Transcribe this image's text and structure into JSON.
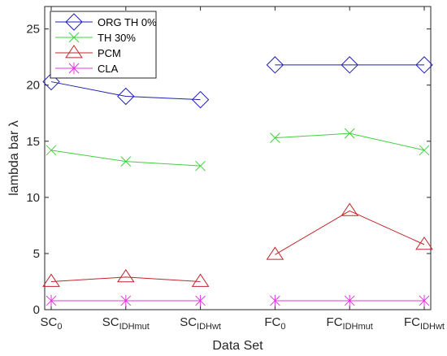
{
  "chart_data": {
    "type": "line",
    "title": "",
    "xlabel": "Data Set",
    "ylabel": "lambda bar λ",
    "ylim": [
      0,
      27
    ],
    "yticks": [
      0,
      5,
      10,
      15,
      20,
      25
    ],
    "grid": false,
    "legend_position": "top-left",
    "categories": [
      {
        "base": "SC",
        "sub": "0"
      },
      {
        "base": "SC",
        "sub": "IDHmut"
      },
      {
        "base": "SC",
        "sub": "IDHwt"
      },
      {
        "base": "FC",
        "sub": "0"
      },
      {
        "base": "FC",
        "sub": "IDHmut"
      },
      {
        "base": "FC",
        "sub": "IDHwt"
      }
    ],
    "series": [
      {
        "name": "ORG TH 0%",
        "color": "#1f1fb4",
        "marker": "diamond",
        "values": [
          20.3,
          19.0,
          18.7,
          21.8,
          21.8,
          21.8
        ]
      },
      {
        "name": "TH 30%",
        "color": "#3fd13f",
        "marker": "x",
        "values": [
          14.2,
          13.2,
          12.8,
          15.3,
          15.7,
          14.2
        ]
      },
      {
        "name": "PCM",
        "color": "#c0262a",
        "marker": "triangle",
        "values": [
          2.5,
          2.9,
          2.5,
          4.9,
          8.8,
          5.8
        ]
      },
      {
        "name": "CLA",
        "color": "#e036e0",
        "marker": "star",
        "values": [
          0.8,
          0.8,
          0.8,
          0.8,
          0.8,
          0.8
        ]
      }
    ],
    "segments": [
      [
        0,
        1,
        2
      ],
      [
        3,
        4,
        5
      ]
    ]
  }
}
